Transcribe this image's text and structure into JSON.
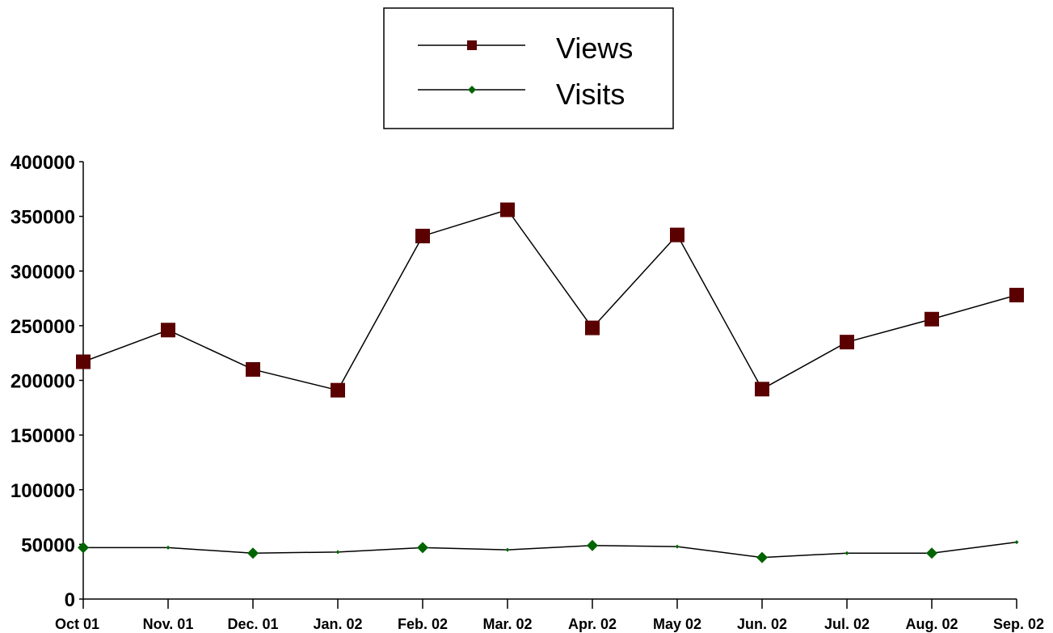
{
  "chart_data": {
    "type": "line",
    "categories": [
      "Oct 01",
      "Nov. 01",
      "Dec. 01",
      "Jan. 02",
      "Feb. 02",
      "Mar. 02",
      "Apr. 02",
      "May 02",
      "Jun. 02",
      "Jul. 02",
      "Aug. 02",
      "Sep. 02"
    ],
    "series": [
      {
        "name": "Views",
        "color": "#5a0000",
        "marker": "square",
        "values": [
          217000,
          246000,
          210000,
          191000,
          332000,
          356000,
          248000,
          333000,
          192000,
          235000,
          256000,
          278000
        ]
      },
      {
        "name": "Visits",
        "color": "#006400",
        "marker": "diamond",
        "values": [
          47000,
          47000,
          42000,
          43000,
          47000,
          45000,
          49000,
          48000,
          38000,
          42000,
          42000,
          52000
        ]
      }
    ],
    "ylim": [
      0,
      400000
    ],
    "yticks": [
      "0",
      "50000",
      "100000",
      "150000",
      "200000",
      "250000",
      "300000",
      "350000",
      "400000"
    ],
    "title": "",
    "xlabel": "",
    "ylabel": "",
    "legend": "top-center",
    "grid": false
  }
}
